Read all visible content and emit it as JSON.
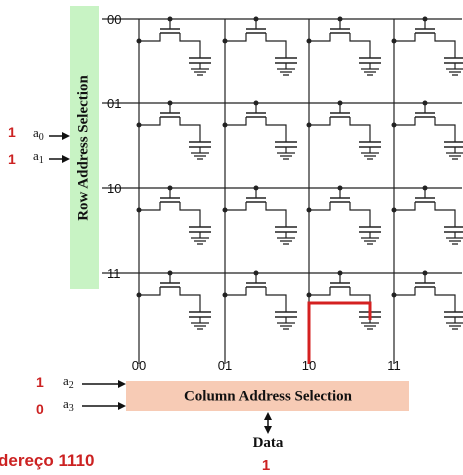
{
  "row_selector": {
    "label": "Row Address Selection",
    "fill": "#c8f3c4",
    "row_addresses": [
      "00",
      "01",
      "10",
      "11"
    ]
  },
  "column_selector": {
    "label": "Column Address Selection",
    "fill": "#f7cbb5",
    "column_addresses": [
      "00",
      "01",
      "10",
      "11"
    ]
  },
  "row_inputs": [
    {
      "symbol": "a",
      "sub": "0",
      "bit": "1"
    },
    {
      "symbol": "a",
      "sub": "1",
      "bit": "1"
    }
  ],
  "column_inputs": [
    {
      "symbol": "a",
      "sub": "2",
      "bit": "1"
    },
    {
      "symbol": "a",
      "sub": "3",
      "bit": "0"
    }
  ],
  "data": {
    "label": "Data",
    "bit": "1"
  },
  "caption": "dereço 1110",
  "selected_cell": {
    "row": "11",
    "column": "10"
  },
  "colors": {
    "wire": "#222222",
    "highlight": "#d42020",
    "annotation": "#cc2222"
  }
}
